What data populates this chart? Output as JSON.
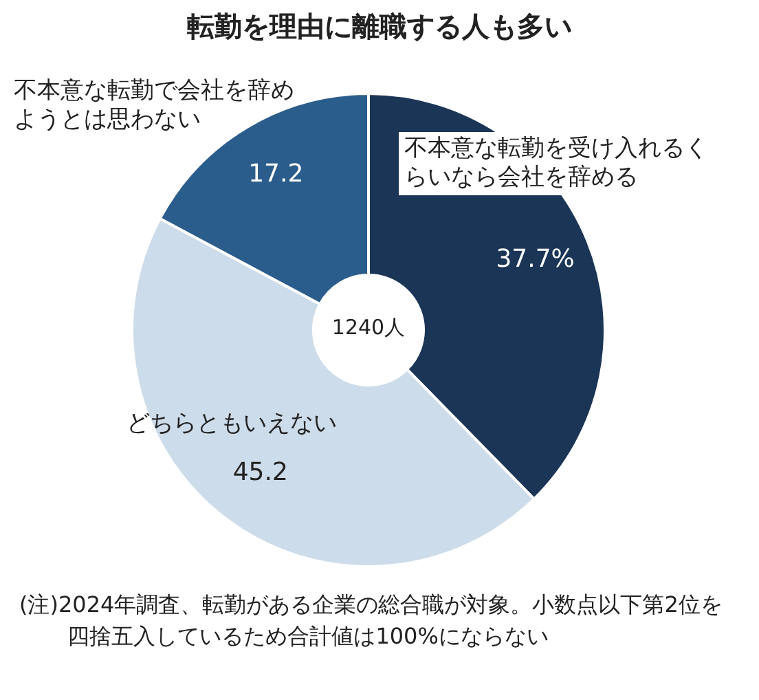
{
  "chart_data": {
    "type": "donut",
    "title": "転勤を理由に離職する人も多い",
    "categories": [
      "不本意な転勤を受け入れるくらいなら会社を辞める",
      "どちらともいえない",
      "不本意な転勤で会社を辞めようとは思わない"
    ],
    "values": [
      37.7,
      45.2,
      17.2
    ],
    "value_labels": [
      "37.7%",
      "45.2",
      "17.2"
    ],
    "colors": [
      "#1b3556",
      "#cddcea",
      "#2b5d8c"
    ],
    "annotations": [
      "1240人",
      "(注)2024年調査、転勤がある企業の総合職が対象。小数点以下第2位を四捨五入しているため合計値は100%にならない"
    ]
  }
}
